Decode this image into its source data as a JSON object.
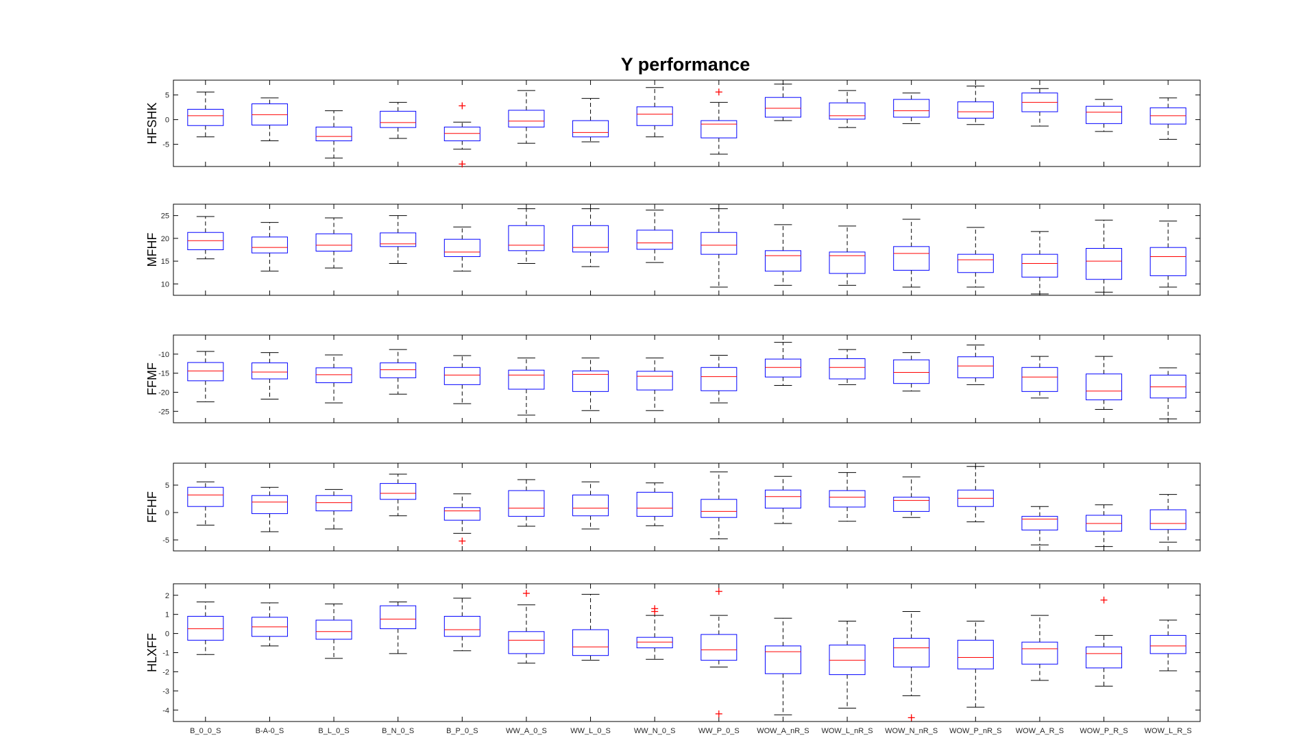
{
  "chart_data": {
    "type": "box",
    "title": "Y performance",
    "categories": [
      "B_0_0_S",
      "B-A-0_S",
      "B_L_0_S",
      "B_N_0_S",
      "B_P_0_S",
      "WW_A_0_S",
      "WW_L_0_S",
      "WW_N_0_S",
      "WW_P_0_S",
      "WOW_A_nR_S",
      "WOW_L_nR_S",
      "WOW_N_nR_S",
      "WOW_P_nR_S",
      "WOW_A_R_S",
      "WOW_P_R_S",
      "WOW_L_R_S"
    ],
    "colors": {
      "box": "#0000ff",
      "median": "#ff0000",
      "whisker": "#000000",
      "outlier": "#ff0000",
      "axes": "#000000"
    },
    "panels": [
      {
        "ylabel": "HFSHK",
        "ylim": [
          -9.5,
          8
        ],
        "yticks": [
          -5,
          0,
          5
        ],
        "ytick_labels": [
          "-5",
          "0",
          "5"
        ],
        "boxes": [
          {
            "min": -3.5,
            "q1": -1.2,
            "median": 0.8,
            "q3": 2.1,
            "max": 5.6,
            "outliers": []
          },
          {
            "min": -4.3,
            "q1": -1.1,
            "median": 1.0,
            "q3": 3.2,
            "max": 4.4,
            "outliers": []
          },
          {
            "min": -7.8,
            "q1": -4.3,
            "median": -3.4,
            "q3": -1.5,
            "max": 1.8,
            "outliers": []
          },
          {
            "min": -3.8,
            "q1": -1.6,
            "median": -0.6,
            "q3": 1.7,
            "max": 3.5,
            "outliers": []
          },
          {
            "min": -6.0,
            "q1": -4.3,
            "median": -2.8,
            "q3": -1.5,
            "max": -0.5,
            "outliers": [
              2.8,
              -9.0
            ]
          },
          {
            "min": -4.8,
            "q1": -1.5,
            "median": -0.3,
            "q3": 1.9,
            "max": 5.9,
            "outliers": []
          },
          {
            "min": -4.5,
            "q1": -3.5,
            "median": -2.6,
            "q3": -0.2,
            "max": 4.3,
            "outliers": []
          },
          {
            "min": -3.5,
            "q1": -1.2,
            "median": 1.1,
            "q3": 2.6,
            "max": 6.5,
            "outliers": []
          },
          {
            "min": -7.0,
            "q1": -3.7,
            "median": -0.9,
            "q3": -0.2,
            "max": 3.5,
            "outliers": [
              5.6
            ]
          },
          {
            "min": -0.2,
            "q1": 0.5,
            "median": 2.3,
            "q3": 4.5,
            "max": 7.2,
            "outliers": []
          },
          {
            "min": -1.6,
            "q1": 0.1,
            "median": 0.8,
            "q3": 3.4,
            "max": 5.9,
            "outliers": []
          },
          {
            "min": -0.8,
            "q1": 0.5,
            "median": 1.8,
            "q3": 4.1,
            "max": 5.4,
            "outliers": []
          },
          {
            "min": -1.0,
            "q1": 0.3,
            "median": 1.6,
            "q3": 3.6,
            "max": 6.8,
            "outliers": []
          },
          {
            "min": -1.3,
            "q1": 1.6,
            "median": 3.5,
            "q3": 5.4,
            "max": 6.3,
            "outliers": []
          },
          {
            "min": -2.4,
            "q1": -0.8,
            "median": 1.5,
            "q3": 2.7,
            "max": 4.1,
            "outliers": []
          },
          {
            "min": -4.0,
            "q1": -0.9,
            "median": 0.8,
            "q3": 2.4,
            "max": 4.4,
            "outliers": []
          }
        ]
      },
      {
        "ylabel": "MFHF",
        "ylim": [
          7.5,
          27.5
        ],
        "yticks": [
          10,
          15,
          20,
          25
        ],
        "ytick_labels": [
          "10",
          "15",
          "20",
          "25"
        ],
        "boxes": [
          {
            "min": 15.5,
            "q1": 17.5,
            "median": 19.5,
            "q3": 21.3,
            "max": 24.8,
            "outliers": []
          },
          {
            "min": 12.8,
            "q1": 16.8,
            "median": 18.0,
            "q3": 20.3,
            "max": 23.5,
            "outliers": []
          },
          {
            "min": 13.5,
            "q1": 17.2,
            "median": 18.5,
            "q3": 21.0,
            "max": 24.5,
            "outliers": []
          },
          {
            "min": 14.5,
            "q1": 18.2,
            "median": 18.8,
            "q3": 21.2,
            "max": 25.0,
            "outliers": []
          },
          {
            "min": 12.8,
            "q1": 16.0,
            "median": 17.0,
            "q3": 19.8,
            "max": 22.5,
            "outliers": []
          },
          {
            "min": 14.5,
            "q1": 17.3,
            "median": 18.5,
            "q3": 22.8,
            "max": 26.5,
            "outliers": []
          },
          {
            "min": 13.8,
            "q1": 17.0,
            "median": 18.0,
            "q3": 22.8,
            "max": 26.5,
            "outliers": []
          },
          {
            "min": 14.7,
            "q1": 17.6,
            "median": 19.0,
            "q3": 21.8,
            "max": 26.2,
            "outliers": []
          },
          {
            "min": 9.3,
            "q1": 16.5,
            "median": 18.5,
            "q3": 21.3,
            "max": 26.5,
            "outliers": []
          },
          {
            "min": 9.7,
            "q1": 12.8,
            "median": 16.2,
            "q3": 17.3,
            "max": 23.0,
            "outliers": []
          },
          {
            "min": 9.7,
            "q1": 12.3,
            "median": 16.2,
            "q3": 17.0,
            "max": 22.7,
            "outliers": []
          },
          {
            "min": 9.3,
            "q1": 13.0,
            "median": 16.7,
            "q3": 18.2,
            "max": 24.2,
            "outliers": []
          },
          {
            "min": 9.3,
            "q1": 12.5,
            "median": 15.3,
            "q3": 16.5,
            "max": 22.4,
            "outliers": []
          },
          {
            "min": 7.8,
            "q1": 11.5,
            "median": 14.5,
            "q3": 16.5,
            "max": 21.5,
            "outliers": []
          },
          {
            "min": 8.2,
            "q1": 11.0,
            "median": 15.0,
            "q3": 17.8,
            "max": 24.0,
            "outliers": []
          },
          {
            "min": 9.3,
            "q1": 11.8,
            "median": 16.0,
            "q3": 18.0,
            "max": 23.8,
            "outliers": []
          }
        ]
      },
      {
        "ylabel": "FFMF",
        "ylim": [
          -28,
          -5
        ],
        "yticks": [
          -25,
          -20,
          -15,
          -10
        ],
        "ytick_labels": [
          "-25",
          "-20",
          "-15",
          "-10"
        ],
        "boxes": [
          {
            "min": -22.5,
            "q1": -17.0,
            "median": -14.4,
            "q3": -12.2,
            "max": -9.3,
            "outliers": []
          },
          {
            "min": -21.8,
            "q1": -16.5,
            "median": -14.7,
            "q3": -12.3,
            "max": -9.6,
            "outliers": []
          },
          {
            "min": -22.8,
            "q1": -17.5,
            "median": -15.4,
            "q3": -13.6,
            "max": -10.2,
            "outliers": []
          },
          {
            "min": -20.5,
            "q1": -16.2,
            "median": -14.1,
            "q3": -12.3,
            "max": -8.8,
            "outliers": []
          },
          {
            "min": -23.0,
            "q1": -18.0,
            "median": -15.5,
            "q3": -13.5,
            "max": -10.4,
            "outliers": []
          },
          {
            "min": -26.0,
            "q1": -19.2,
            "median": -15.5,
            "q3": -14.2,
            "max": -11.0,
            "outliers": []
          },
          {
            "min": -24.8,
            "q1": -19.8,
            "median": -15.3,
            "q3": -14.4,
            "max": -11.0,
            "outliers": []
          },
          {
            "min": -24.8,
            "q1": -19.4,
            "median": -15.8,
            "q3": -14.5,
            "max": -11.0,
            "outliers": []
          },
          {
            "min": -22.8,
            "q1": -19.6,
            "median": -15.9,
            "q3": -13.5,
            "max": -10.3,
            "outliers": []
          },
          {
            "min": -18.2,
            "q1": -16.0,
            "median": -13.5,
            "q3": -11.3,
            "max": -6.9,
            "outliers": []
          },
          {
            "min": -18.0,
            "q1": -16.5,
            "median": -13.5,
            "q3": -11.2,
            "max": -8.8,
            "outliers": []
          },
          {
            "min": -19.7,
            "q1": -17.7,
            "median": -14.8,
            "q3": -11.5,
            "max": -9.6,
            "outliers": []
          },
          {
            "min": -18.0,
            "q1": -16.2,
            "median": -13.1,
            "q3": -10.7,
            "max": -7.6,
            "outliers": []
          },
          {
            "min": -21.5,
            "q1": -19.8,
            "median": -16.0,
            "q3": -13.5,
            "max": -10.6,
            "outliers": []
          },
          {
            "min": -24.5,
            "q1": -22.0,
            "median": -19.7,
            "q3": -15.2,
            "max": -10.6,
            "outliers": []
          },
          {
            "min": -27.0,
            "q1": -21.5,
            "median": -18.6,
            "q3": -15.5,
            "max": -13.6,
            "outliers": []
          }
        ]
      },
      {
        "ylabel": "FFHF",
        "ylim": [
          -7,
          9
        ],
        "yticks": [
          -5,
          0,
          5
        ],
        "ytick_labels": [
          "-5",
          "0",
          "5"
        ],
        "boxes": [
          {
            "min": -2.3,
            "q1": 1.1,
            "median": 3.2,
            "q3": 4.6,
            "max": 5.6,
            "outliers": []
          },
          {
            "min": -3.5,
            "q1": -0.2,
            "median": 1.9,
            "q3": 3.1,
            "max": 4.6,
            "outliers": []
          },
          {
            "min": -3.0,
            "q1": 0.3,
            "median": 1.8,
            "q3": 3.1,
            "max": 4.2,
            "outliers": []
          },
          {
            "min": -0.6,
            "q1": 2.4,
            "median": 3.5,
            "q3": 5.3,
            "max": 7.0,
            "outliers": []
          },
          {
            "min": -3.8,
            "q1": -1.4,
            "median": 0.3,
            "q3": 0.9,
            "max": 3.4,
            "outliers": [
              -5.2
            ]
          },
          {
            "min": -2.5,
            "q1": -0.7,
            "median": 0.8,
            "q3": 4.0,
            "max": 6.0,
            "outliers": []
          },
          {
            "min": -3.0,
            "q1": -0.6,
            "median": 0.8,
            "q3": 3.2,
            "max": 5.6,
            "outliers": []
          },
          {
            "min": -2.4,
            "q1": -0.7,
            "median": 0.8,
            "q3": 3.7,
            "max": 5.4,
            "outliers": []
          },
          {
            "min": -4.8,
            "q1": -0.9,
            "median": 0.2,
            "q3": 2.4,
            "max": 7.4,
            "outliers": []
          },
          {
            "min": -2.0,
            "q1": 0.8,
            "median": 2.9,
            "q3": 4.1,
            "max": 6.6,
            "outliers": []
          },
          {
            "min": -1.6,
            "q1": 1.0,
            "median": 2.8,
            "q3": 4.0,
            "max": 7.3,
            "outliers": []
          },
          {
            "min": -0.9,
            "q1": 0.2,
            "median": 2.2,
            "q3": 2.8,
            "max": 6.5,
            "outliers": []
          },
          {
            "min": -1.7,
            "q1": 1.1,
            "median": 2.6,
            "q3": 4.1,
            "max": 8.4,
            "outliers": []
          },
          {
            "min": -5.9,
            "q1": -3.2,
            "median": -1.2,
            "q3": -0.7,
            "max": 1.1,
            "outliers": []
          },
          {
            "min": -6.2,
            "q1": -3.4,
            "median": -2.0,
            "q3": -0.5,
            "max": 1.4,
            "outliers": []
          },
          {
            "min": -5.4,
            "q1": -3.1,
            "median": -2.0,
            "q3": 0.5,
            "max": 3.3,
            "outliers": []
          }
        ]
      },
      {
        "ylabel": "HLXFF",
        "ylim": [
          -4.6,
          2.6
        ],
        "yticks": [
          -4,
          -3,
          -2,
          -1,
          0,
          1,
          2
        ],
        "ytick_labels": [
          "-4",
          "-3",
          "-2",
          "-1",
          "0",
          "1",
          "2"
        ],
        "boxes": [
          {
            "min": -1.1,
            "q1": -0.35,
            "median": 0.25,
            "q3": 0.9,
            "max": 1.65,
            "outliers": []
          },
          {
            "min": -0.65,
            "q1": -0.15,
            "median": 0.35,
            "q3": 0.85,
            "max": 1.6,
            "outliers": []
          },
          {
            "min": -1.3,
            "q1": -0.3,
            "median": 0.1,
            "q3": 0.7,
            "max": 1.55,
            "outliers": []
          },
          {
            "min": -1.05,
            "q1": 0.25,
            "median": 0.75,
            "q3": 1.45,
            "max": 1.65,
            "outliers": []
          },
          {
            "min": -0.9,
            "q1": -0.15,
            "median": 0.2,
            "q3": 0.9,
            "max": 1.85,
            "outliers": []
          },
          {
            "min": -1.55,
            "q1": -1.05,
            "median": -0.35,
            "q3": 0.1,
            "max": 1.5,
            "outliers": [
              2.1
            ]
          },
          {
            "min": -1.4,
            "q1": -1.15,
            "median": -0.7,
            "q3": 0.2,
            "max": 2.05,
            "outliers": []
          },
          {
            "min": -1.35,
            "q1": -0.75,
            "median": -0.45,
            "q3": -0.2,
            "max": 0.95,
            "outliers": [
              1.3,
              1.15
            ]
          },
          {
            "min": -1.75,
            "q1": -1.4,
            "median": -0.85,
            "q3": -0.05,
            "max": 0.95,
            "outliers": [
              2.2,
              -4.2
            ]
          },
          {
            "min": -4.25,
            "q1": -2.1,
            "median": -0.95,
            "q3": -0.65,
            "max": 0.8,
            "outliers": []
          },
          {
            "min": -3.9,
            "q1": -2.15,
            "median": -1.4,
            "q3": -0.6,
            "max": 0.65,
            "outliers": []
          },
          {
            "min": -3.25,
            "q1": -1.75,
            "median": -0.75,
            "q3": -0.25,
            "max": 1.15,
            "outliers": [
              -4.4
            ]
          },
          {
            "min": -3.85,
            "q1": -1.85,
            "median": -1.25,
            "q3": -0.35,
            "max": 0.65,
            "outliers": []
          },
          {
            "min": -2.45,
            "q1": -1.6,
            "median": -0.8,
            "q3": -0.45,
            "max": 0.95,
            "outliers": []
          },
          {
            "min": -2.75,
            "q1": -1.8,
            "median": -1.05,
            "q3": -0.7,
            "max": -0.1,
            "outliers": [
              1.75
            ]
          },
          {
            "min": -1.95,
            "q1": -1.05,
            "median": -0.65,
            "q3": -0.1,
            "max": 0.7,
            "outliers": []
          }
        ]
      }
    ]
  }
}
